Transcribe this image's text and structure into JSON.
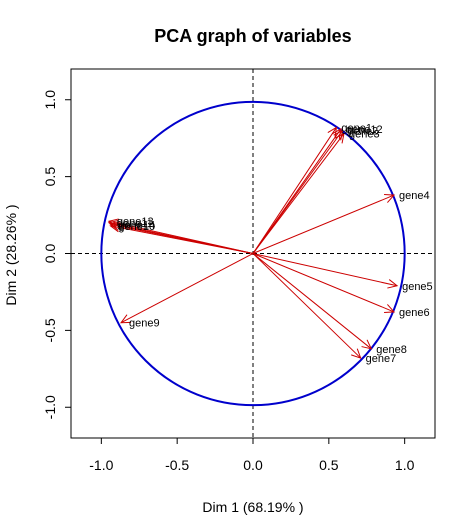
{
  "chart_data": {
    "type": "scatter",
    "title": "PCA graph of variables",
    "xlabel": "Dim 1 (68.19% )",
    "ylabel": "Dim 2 (28.26% )",
    "xlim": [
      -1.2,
      1.2
    ],
    "ylim": [
      -1.2,
      1.2
    ],
    "xticks": [
      -1.0,
      -0.5,
      0.0,
      0.5,
      1.0
    ],
    "yticks": [
      -1.0,
      -0.5,
      0.0,
      0.5,
      1.0
    ],
    "xtick_labels": [
      "-1.0",
      "-0.5",
      "0.0",
      "0.5",
      "1.0"
    ],
    "ytick_labels": [
      "-1.0",
      "-0.5",
      "0.0",
      "0.5",
      "1.0"
    ],
    "circle_radius": 1.0,
    "circle_color": "#0000cc",
    "arrow_color": "#cc0000",
    "variables": [
      {
        "name": "gene1",
        "x": 0.55,
        "y": 0.82
      },
      {
        "name": "gene2",
        "x": 0.59,
        "y": 0.8
      },
      {
        "name": "gene3",
        "x": 0.6,
        "y": 0.78
      },
      {
        "name": "gene4",
        "x": 0.93,
        "y": 0.38
      },
      {
        "name": "gene5",
        "x": 0.95,
        "y": -0.21
      },
      {
        "name": "gene6",
        "x": 0.93,
        "y": -0.38
      },
      {
        "name": "gene7",
        "x": 0.71,
        "y": -0.68
      },
      {
        "name": "gene8",
        "x": 0.78,
        "y": -0.62
      },
      {
        "name": "gene9",
        "x": -0.87,
        "y": -0.45
      },
      {
        "name": "gene10",
        "x": -0.94,
        "y": 0.18
      },
      {
        "name": "gene11",
        "x": -0.95,
        "y": 0.2
      },
      {
        "name": "gene12",
        "x": 0.58,
        "y": 0.81
      },
      {
        "name": "gene13",
        "x": -0.95,
        "y": 0.21
      },
      {
        "name": "gene14",
        "x": -0.94,
        "y": 0.19
      }
    ]
  }
}
